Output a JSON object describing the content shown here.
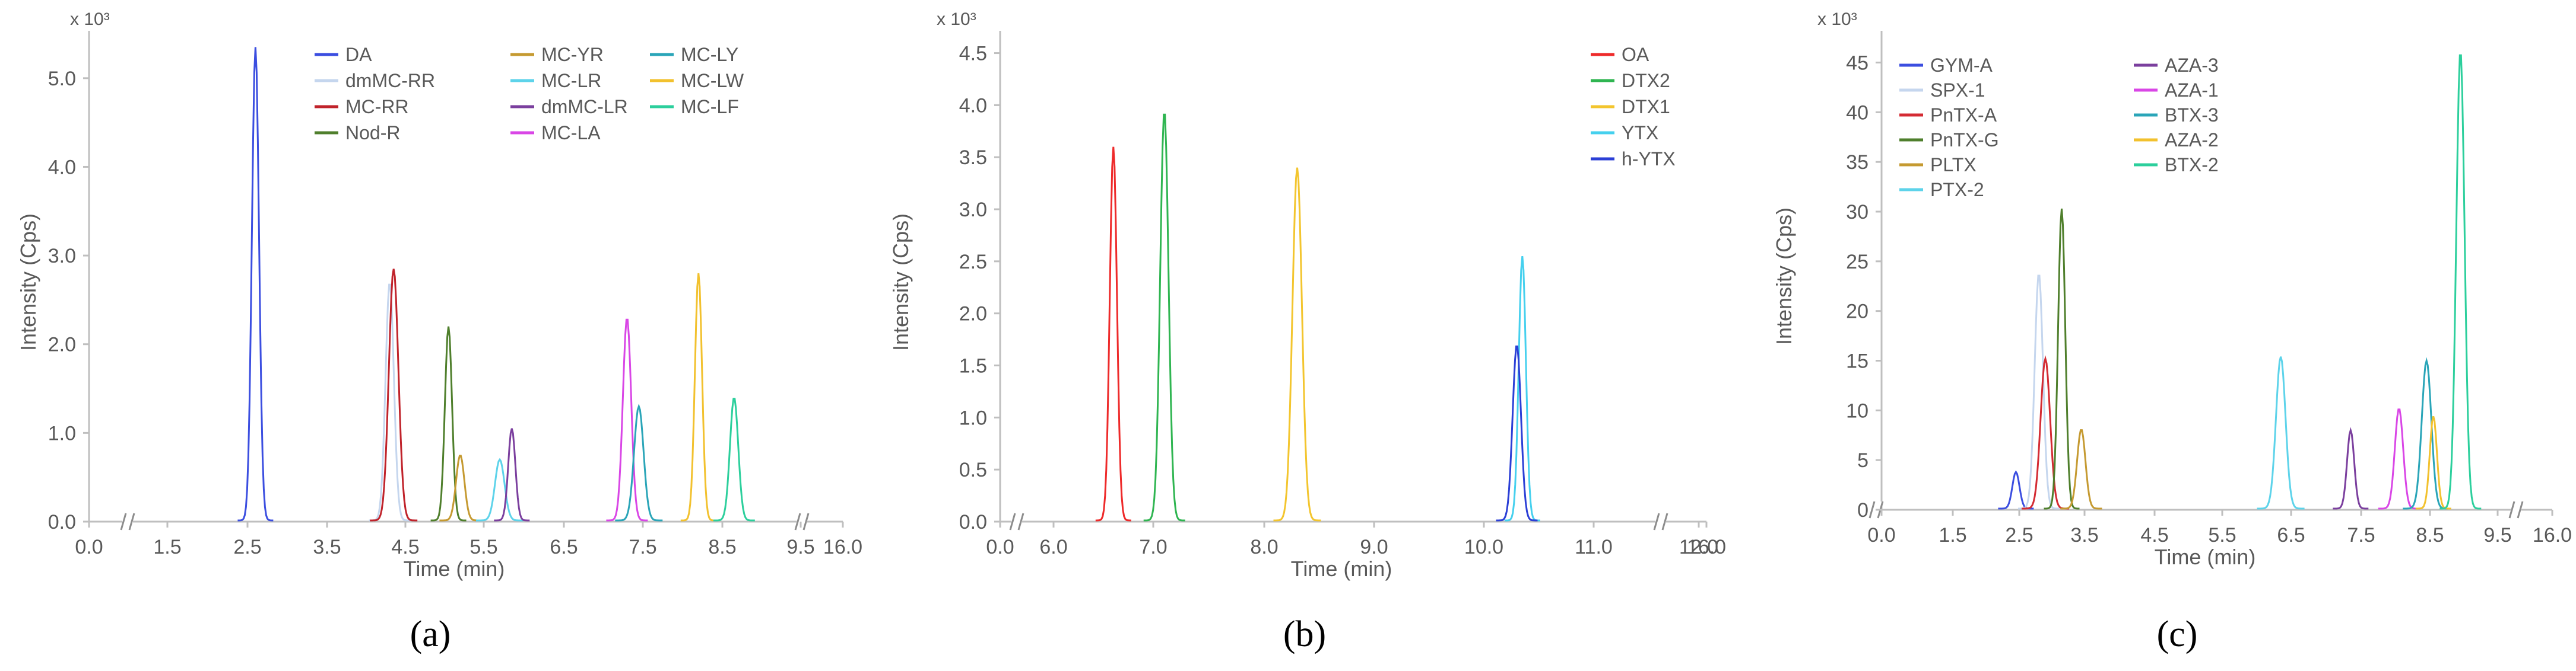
{
  "chart_data": [
    {
      "type": "line",
      "panel_label": "(a)",
      "multiplier": "x 10³",
      "xlabel": "Time (min)",
      "ylabel": "Intensity (Cps)",
      "x_ticks": [
        "0.0",
        "1.5",
        "2.5",
        "3.5",
        "4.5",
        "5.5",
        "6.5",
        "7.5",
        "8.5",
        "9.5",
        "16.0"
      ],
      "y_ticks": [
        "0.0",
        "1.0",
        "2.0",
        "3.0",
        "4.0",
        "5.0"
      ],
      "ylim": [
        0,
        5.4
      ],
      "axis_break": true,
      "grid": false,
      "legend_placement": "top-center",
      "series": [
        {
          "name": "DA",
          "color": "#3b4ee0",
          "peaks": [
            {
              "x": 2.6,
              "y": 5.35
            }
          ]
        },
        {
          "name": "dmMC-RR",
          "color": "#c5d6ee",
          "peaks": [
            {
              "x": 4.3,
              "y": 2.7
            }
          ]
        },
        {
          "name": "MC-RR",
          "color": "#c0232b",
          "peaks": [
            {
              "x": 4.35,
              "y": 2.85
            }
          ]
        },
        {
          "name": "Nod-R",
          "color": "#4f7f2c",
          "peaks": [
            {
              "x": 5.05,
              "y": 2.2
            }
          ]
        },
        {
          "name": "MC-YR",
          "color": "#c59a31",
          "peaks": [
            {
              "x": 5.2,
              "y": 0.75
            }
          ]
        },
        {
          "name": "MC-LR",
          "color": "#5dd3ea",
          "peaks": [
            {
              "x": 5.7,
              "y": 0.7
            }
          ]
        },
        {
          "name": "dmMC-LR",
          "color": "#7b3f9e",
          "peaks": [
            {
              "x": 5.85,
              "y": 1.05
            }
          ]
        },
        {
          "name": "MC-LA",
          "color": "#d946e6",
          "peaks": [
            {
              "x": 7.3,
              "y": 2.3
            }
          ]
        },
        {
          "name": "MC-LY",
          "color": "#2aa5b8",
          "peaks": [
            {
              "x": 7.45,
              "y": 1.3
            }
          ]
        },
        {
          "name": "MC-LW",
          "color": "#f2c12e",
          "peaks": [
            {
              "x": 8.2,
              "y": 2.8
            }
          ]
        },
        {
          "name": "MC-LF",
          "color": "#2ccf9c",
          "peaks": [
            {
              "x": 8.65,
              "y": 1.4
            }
          ]
        }
      ]
    },
    {
      "type": "line",
      "panel_label": "(b)",
      "multiplier": "x 10³",
      "xlabel": "Time (min)",
      "ylabel": "Intensity (Cps)",
      "x_ticks": [
        "0.0",
        "6.0",
        "7.0",
        "8.0",
        "9.0",
        "10.0",
        "11.0",
        "12.0",
        "16.0"
      ],
      "y_ticks": [
        "0.0",
        "0.5",
        "1.0",
        "1.5",
        "2.0",
        "2.5",
        "3.0",
        "3.5",
        "4.0",
        "4.5"
      ],
      "ylim": [
        0,
        4.6
      ],
      "axis_break": true,
      "grid": false,
      "legend_placement": "top-right",
      "series": [
        {
          "name": "OA",
          "color": "#ee2a2a",
          "peaks": [
            {
              "x": 6.6,
              "y": 3.6
            }
          ]
        },
        {
          "name": "DTX2",
          "color": "#2fb551",
          "peaks": [
            {
              "x": 7.1,
              "y": 3.95
            }
          ]
        },
        {
          "name": "DTX1",
          "color": "#f3c52e",
          "peaks": [
            {
              "x": 8.3,
              "y": 3.4
            }
          ]
        },
        {
          "name": "YTX",
          "color": "#45d0ee",
          "peaks": [
            {
              "x": 10.35,
              "y": 2.55
            }
          ]
        },
        {
          "name": "h-YTX",
          "color": "#2b3fd6",
          "peaks": [
            {
              "x": 10.3,
              "y": 1.7
            }
          ]
        }
      ]
    },
    {
      "type": "line",
      "panel_label": "(c)",
      "multiplier": "x 10³",
      "xlabel": "Time (min)",
      "ylabel": "Intensity (Cps)",
      "x_ticks": [
        "0.0",
        "1.5",
        "2.5",
        "3.5",
        "4.5",
        "5.5",
        "6.5",
        "7.5",
        "8.5",
        "9.5",
        "16.0"
      ],
      "y_ticks": [
        "0",
        "5",
        "10",
        "15",
        "20",
        "25",
        "30",
        "35",
        "40",
        "45"
      ],
      "ylim": [
        0,
        47
      ],
      "axis_break": true,
      "grid": false,
      "legend_placement": "top-center",
      "series": [
        {
          "name": "GYM-A",
          "color": "#3b4ee0",
          "peaks": [
            {
              "x": 2.45,
              "y": 3.8
            }
          ]
        },
        {
          "name": "SPX-1",
          "color": "#c5d6ee",
          "peaks": [
            {
              "x": 2.8,
              "y": 23.8
            }
          ]
        },
        {
          "name": "PnTX-A",
          "color": "#d42b33",
          "peaks": [
            {
              "x": 2.9,
              "y": 15.2
            }
          ]
        },
        {
          "name": "PnTX-G",
          "color": "#4f7f2c",
          "peaks": [
            {
              "x": 3.15,
              "y": 30.3
            }
          ]
        },
        {
          "name": "PLTX",
          "color": "#c59a31",
          "peaks": [
            {
              "x": 3.45,
              "y": 8.1
            }
          ]
        },
        {
          "name": "PTX-2",
          "color": "#5dd3ea",
          "peaks": [
            {
              "x": 6.35,
              "y": 15.4
            }
          ]
        },
        {
          "name": "AZA-3",
          "color": "#7b3f9e",
          "peaks": [
            {
              "x": 7.35,
              "y": 8.0
            }
          ]
        },
        {
          "name": "AZA-1",
          "color": "#d946e6",
          "peaks": [
            {
              "x": 8.05,
              "y": 10.2
            }
          ]
        },
        {
          "name": "BTX-3",
          "color": "#2aa5b8",
          "peaks": [
            {
              "x": 8.45,
              "y": 15.0
            }
          ]
        },
        {
          "name": "AZA-2",
          "color": "#f2c12e",
          "peaks": [
            {
              "x": 8.55,
              "y": 9.4
            }
          ]
        },
        {
          "name": "BTX-2",
          "color": "#2ccf9c",
          "peaks": [
            {
              "x": 8.95,
              "y": 46.2
            }
          ]
        }
      ]
    }
  ]
}
